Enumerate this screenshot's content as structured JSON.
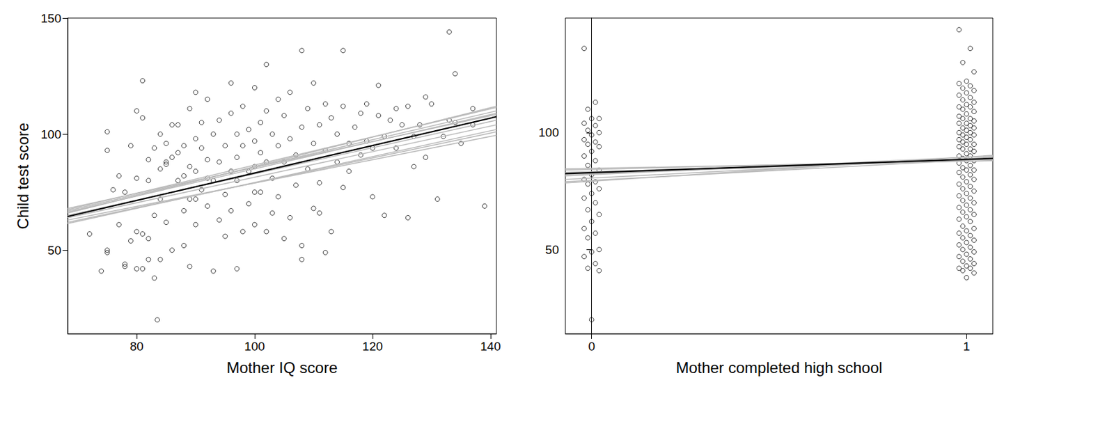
{
  "chart_data": [
    {
      "type": "scatter",
      "x_label": "Mother IQ score",
      "y_label": "Child test score",
      "xlim": [
        68.3,
        141
      ],
      "xticks": [
        80,
        100,
        120,
        140
      ],
      "ylim": [
        14,
        150
      ],
      "yticks": [
        50,
        100,
        150
      ],
      "grid": false,
      "series": [
        {
          "type": "scatter",
          "marker": "circle",
          "color": "#000000",
          "x": [
            72,
            74,
            75,
            75,
            75,
            75,
            76,
            77,
            77,
            78,
            78,
            78,
            79,
            79,
            80,
            80,
            80,
            80,
            81,
            81,
            81,
            81,
            82,
            82,
            82,
            82,
            83,
            83,
            83,
            83.5,
            84,
            84,
            84,
            84,
            85,
            85,
            85,
            86,
            86,
            86,
            87,
            87,
            87,
            88,
            88,
            88,
            89,
            89,
            89,
            89,
            90,
            90,
            90,
            90,
            91,
            91,
            91,
            92,
            92,
            92,
            93,
            93,
            93,
            94,
            94,
            94,
            95,
            95,
            95,
            96,
            96,
            96,
            97,
            97,
            97,
            97,
            98,
            98,
            98,
            99,
            99,
            99,
            100,
            100,
            100,
            100,
            101,
            101,
            101,
            102,
            102,
            102,
            102,
            103,
            103,
            103,
            104,
            104,
            104,
            105,
            105,
            105,
            106,
            106,
            107,
            107,
            108,
            108,
            108,
            108,
            109,
            109,
            110,
            110,
            110,
            111,
            111,
            112,
            112,
            112,
            113,
            113,
            114,
            114,
            115,
            115,
            115,
            116,
            116,
            117,
            118,
            118,
            119,
            119,
            120,
            120,
            121,
            121,
            122,
            122,
            123,
            124,
            124,
            125,
            126,
            126,
            127,
            127,
            128,
            129,
            129,
            130,
            131,
            132,
            133,
            133,
            134,
            134,
            135,
            137,
            137,
            139,
            96,
            92,
            88,
            85,
            90,
            100,
            106,
            111
          ],
          "values": [
            57,
            41,
            101,
            93,
            50,
            49,
            76,
            61,
            82,
            75,
            44,
            43,
            54,
            95,
            81,
            110,
            58,
            42,
            107,
            123,
            42,
            57,
            89,
            80,
            55,
            46,
            94,
            65,
            38,
            20,
            100,
            85,
            72,
            46,
            96,
            88,
            62,
            104,
            90,
            50,
            92,
            80,
            104,
            67,
            95,
            52,
            111,
            86,
            43,
            72,
            118,
            98,
            84,
            61,
            94,
            76,
            105,
            89,
            69,
            115,
            100,
            41,
            80,
            106,
            63,
            88,
            95,
            56,
            74,
            109,
            122,
            67,
            100,
            90,
            42,
            80,
            112,
            95,
            58,
            102,
            84,
            70,
            120,
            97,
            86,
            61,
            105,
            92,
            75,
            130,
            110,
            58,
            88,
            100,
            81,
            66,
            115,
            95,
            73,
            108,
            88,
            55,
            118,
            98,
            91,
            78,
            136,
            103,
            52,
            46,
            111,
            85,
            122,
            96,
            68,
            104,
            79,
            113,
            93,
            49,
            107,
            58,
            100,
            88,
            136,
            112,
            77,
            96,
            84,
            103,
            109,
            91,
            113,
            97,
            94,
            73,
            121,
            108,
            65,
            99,
            106,
            111,
            94,
            104,
            64,
            112,
            86,
            99,
            104,
            116,
            90,
            113,
            72,
            99,
            144,
            106,
            126,
            105,
            96,
            111,
            104,
            69,
            84,
            81,
            82,
            87,
            72,
            75,
            64,
            66
          ]
        },
        {
          "type": "line",
          "color": "#bbbbbb",
          "x": [
            68.3,
            141
          ],
          "values": [
            66,
            112
          ]
        },
        {
          "type": "line",
          "color": "#bbbbbb",
          "x": [
            68.3,
            141
          ],
          "values": [
            67,
            110
          ]
        },
        {
          "type": "line",
          "color": "#bbbbbb",
          "x": [
            68.3,
            141
          ],
          "values": [
            68,
            108.5
          ]
        },
        {
          "type": "line",
          "color": "#bbbbbb",
          "x": [
            68.3,
            141
          ],
          "values": [
            62,
            101
          ]
        },
        {
          "type": "line",
          "color": "#bbbbbb",
          "x": [
            68.3,
            141
          ],
          "values": [
            63,
            99.5
          ]
        },
        {
          "type": "line",
          "color": "#bbbbbb",
          "x": [
            68.3,
            141
          ],
          "values": [
            65,
            106
          ]
        },
        {
          "type": "line",
          "color": "#bbbbbb",
          "x": [
            68.3,
            141
          ],
          "values": [
            61.5,
            102
          ]
        },
        {
          "type": "line",
          "color": "#bbbbbb",
          "x": [
            68.3,
            141
          ],
          "values": [
            66.5,
            109
          ]
        },
        {
          "type": "line",
          "color": "#bbbbbb",
          "x": [
            68.3,
            141
          ],
          "values": [
            64,
            104
          ]
        },
        {
          "type": "line",
          "color": "#bbbbbb",
          "x": [
            68.3,
            141
          ],
          "values": [
            67.5,
            111.5
          ]
        },
        {
          "type": "line",
          "color": "#000000",
          "x": [
            68.3,
            141
          ],
          "values": [
            64.5,
            107.5
          ]
        }
      ]
    },
    {
      "type": "scatter",
      "x_label": "Mother completed high school",
      "xlim": [
        -0.07,
        1.07
      ],
      "xticks": [
        0,
        1
      ],
      "ylim": [
        14,
        149
      ],
      "yticks": [
        50,
        100
      ],
      "grid": false,
      "series": [
        {
          "type": "scatter",
          "marker": "circle",
          "color": "#000000",
          "x": [
            -0.02,
            0.01,
            -0.01,
            0.02,
            0,
            -0.02,
            0.01,
            -0.01,
            0.02,
            0,
            -0.02,
            0.01,
            -0.01,
            0.02,
            0,
            -0.02,
            0.01,
            -0.01,
            0.02,
            0,
            -0.02,
            0.01,
            -0.01,
            0.02,
            0,
            -0.02,
            0.01,
            -0.01,
            0.02,
            0,
            -0.02,
            0.01,
            -0.01,
            0.02,
            0,
            -0.02,
            0.01,
            -0.01,
            0.02,
            0
          ],
          "values": [
            136,
            113,
            110,
            106,
            106,
            104,
            103,
            101,
            100,
            99,
            97,
            96,
            95,
            94,
            92,
            90,
            88,
            86,
            84,
            82,
            80,
            79,
            78,
            76,
            74,
            72,
            70,
            67,
            65,
            62,
            59,
            57,
            55,
            50,
            49,
            47,
            44,
            42,
            41,
            20
          ]
        },
        {
          "type": "scatter",
          "marker": "circle",
          "color": "#000000",
          "x": [
            0.98,
            1.01,
            0.99,
            1.02,
            1,
            0.98,
            1.01,
            0.99,
            1.02,
            1,
            0.98,
            1.01,
            0.99,
            1.02,
            1,
            0.98,
            1.01,
            0.99,
            1.02,
            1,
            0.98,
            1.01,
            0.99,
            1.02,
            1,
            0.98,
            1.01,
            0.99,
            1.02,
            1,
            0.98,
            1.01,
            0.99,
            1.02,
            1,
            0.98,
            1.01,
            0.99,
            1.02,
            1,
            0.98,
            1.01,
            0.99,
            1.02,
            1,
            0.98,
            1.01,
            0.99,
            1.02,
            1,
            0.98,
            1.01,
            0.99,
            1.02,
            1,
            0.98,
            1.01,
            0.99,
            1.02,
            1,
            0.98,
            1.01,
            0.99,
            1.02,
            1,
            0.98,
            1.01,
            0.99,
            1.02,
            1,
            0.98,
            1.01,
            0.99,
            1.02,
            1,
            0.98,
            1.01,
            0.99,
            1.02,
            1,
            0.98,
            1.01,
            0.99,
            1.02,
            1,
            0.98,
            1.01,
            0.99,
            1.02,
            1,
            0.98,
            1.01,
            0.99,
            1.02,
            1,
            0.98,
            1.01,
            0.99,
            1.02,
            1
          ],
          "values": [
            144,
            136,
            130,
            126,
            122,
            121,
            120,
            119,
            118,
            117,
            116,
            115,
            114,
            113,
            112,
            111,
            111,
            110,
            109,
            108,
            107,
            106,
            106,
            105,
            104,
            104,
            103,
            102,
            102,
            101,
            100,
            100,
            99,
            99,
            98,
            97,
            97,
            96,
            95,
            95,
            94,
            93,
            93,
            92,
            91,
            90,
            90,
            89,
            88,
            88,
            87,
            86,
            85,
            84,
            84,
            83,
            82,
            81,
            80,
            79,
            78,
            77,
            76,
            75,
            74,
            73,
            72,
            71,
            70,
            69,
            68,
            67,
            66,
            65,
            64,
            63,
            62,
            60,
            59,
            58,
            57,
            56,
            55,
            54,
            53,
            52,
            51,
            50,
            49,
            48,
            47,
            46,
            45,
            44,
            43,
            42,
            42,
            41,
            40,
            38
          ]
        },
        {
          "type": "line",
          "color": "#bbbbbb",
          "x": [
            -0.07,
            1.07
          ],
          "values": [
            84,
            88.5
          ]
        },
        {
          "type": "line",
          "color": "#bbbbbb",
          "x": [
            -0.07,
            1.07
          ],
          "values": [
            83,
            88.3
          ]
        },
        {
          "type": "line",
          "color": "#bbbbbb",
          "x": [
            -0.07,
            1.07
          ],
          "values": [
            80,
            89.5
          ]
        },
        {
          "type": "line",
          "color": "#bbbbbb",
          "x": [
            -0.07,
            1.07
          ],
          "values": [
            79,
            88.8
          ]
        },
        {
          "type": "line",
          "color": "#bbbbbb",
          "x": [
            -0.07,
            1.07
          ],
          "values": [
            81.5,
            90
          ]
        },
        {
          "type": "line",
          "color": "#bbbbbb",
          "x": [
            -0.07,
            1.07
          ],
          "values": [
            84.5,
            88
          ]
        },
        {
          "type": "line",
          "color": "#bbbbbb",
          "x": [
            -0.07,
            1.07
          ],
          "values": [
            78.5,
            90.3
          ]
        },
        {
          "type": "line",
          "color": "#bbbbbb",
          "x": [
            -0.07,
            1.07
          ],
          "values": [
            82,
            88.7
          ]
        },
        {
          "type": "line",
          "color": "#000000",
          "x": [
            -0.07,
            1.07
          ],
          "values": [
            82.5,
            89
          ]
        }
      ]
    }
  ]
}
